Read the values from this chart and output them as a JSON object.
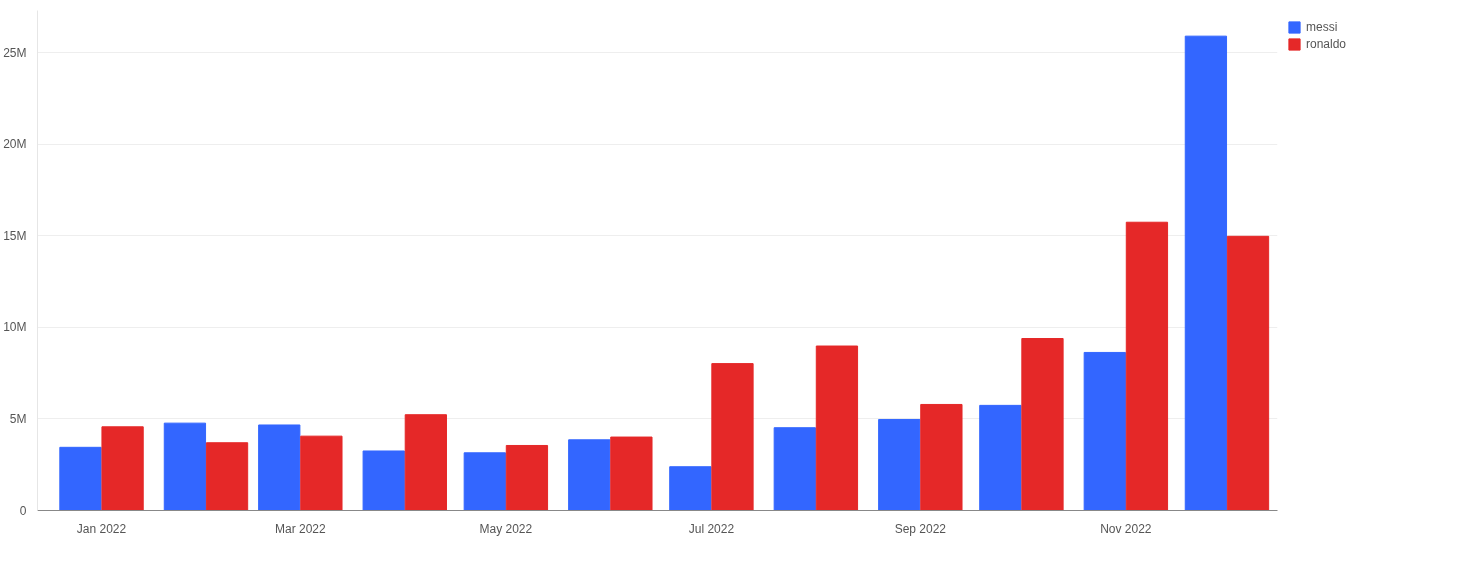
{
  "chart_data": {
    "type": "bar",
    "x": [
      "2022-01",
      "2022-02",
      "2022-03",
      "2022-04",
      "2022-05",
      "2022-06",
      "2022-07",
      "2022-08",
      "2022-09",
      "2022-10",
      "2022-11",
      "2022-12"
    ],
    "series": [
      {
        "name": "messi",
        "color": "#3366ff",
        "values": [
          3450000,
          4770000,
          4670000,
          3250000,
          3150000,
          3860000,
          2390000,
          4520000,
          4970000,
          5740000,
          8630000,
          25900000
        ]
      },
      {
        "name": "ronaldo",
        "color": "#e52828",
        "values": [
          4570000,
          3700000,
          4060000,
          5230000,
          3550000,
          4010000,
          8020000,
          8980000,
          5790000,
          9390000,
          15740000,
          14970000
        ]
      }
    ],
    "xlim": [
      "2021-12-13",
      "2022-12-16"
    ],
    "xticks": [
      {
        "value": "2022-01",
        "label": "Jan 2022"
      },
      {
        "value": "2022-03",
        "label": "Mar 2022"
      },
      {
        "value": "2022-05",
        "label": "May 2022"
      },
      {
        "value": "2022-07",
        "label": "Jul 2022"
      },
      {
        "value": "2022-09",
        "label": "Sep 2022"
      },
      {
        "value": "2022-11",
        "label": "Nov 2022"
      }
    ],
    "ylim": [
      0,
      27300000
    ],
    "yticks": [
      0,
      {
        "value": 5000000,
        "label": "5M"
      },
      {
        "value": 10000000,
        "label": "10M"
      },
      {
        "value": 15000000,
        "label": "15M"
      },
      {
        "value": 20000000,
        "label": "20M"
      },
      {
        "value": 25000000,
        "label": "25M"
      }
    ],
    "grid": "y",
    "legend": "top right"
  }
}
